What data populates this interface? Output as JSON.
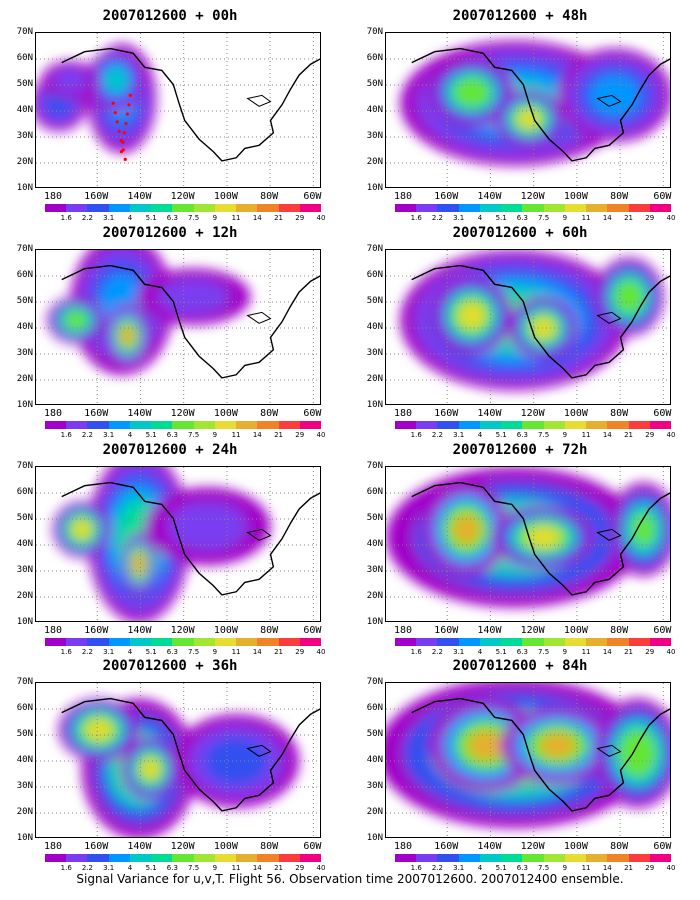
{
  "caption": "Signal Variance for u,v,T. Flight 56. Observation time 2007012600. 2007012400 ensemble.",
  "y_ticks": [
    "70N",
    "60N",
    "50N",
    "40N",
    "30N",
    "20N",
    "10N"
  ],
  "x_ticks": [
    "180",
    "160W",
    "140W",
    "120W",
    "100W",
    "80W",
    "60W"
  ],
  "colorbar": {
    "labels": [
      "1.6",
      "2.2",
      "3.1",
      "4",
      "5.1",
      "6.3",
      "7.5",
      "9",
      "11",
      "14",
      "21",
      "29",
      "40"
    ],
    "colors": [
      "#a000c8",
      "#7a3cf0",
      "#3250f0",
      "#0096ff",
      "#00c8c8",
      "#00dc96",
      "#64e632",
      "#a0e632",
      "#e6dc32",
      "#e6af2d",
      "#f08228",
      "#fa3c3c",
      "#f00082"
    ]
  },
  "panels": [
    {
      "title": "2007012600 + 00h",
      "lead_hours": 0,
      "flight_track_shown": true
    },
    {
      "title": "2007012600 + 12h",
      "lead_hours": 12,
      "flight_track_shown": false
    },
    {
      "title": "2007012600 + 24h",
      "lead_hours": 24,
      "flight_track_shown": false
    },
    {
      "title": "2007012600 + 36h",
      "lead_hours": 36,
      "flight_track_shown": false
    },
    {
      "title": "2007012600 + 48h",
      "lead_hours": 48,
      "flight_track_shown": false
    },
    {
      "title": "2007012600 + 60h",
      "lead_hours": 60,
      "flight_track_shown": false
    },
    {
      "title": "2007012600 + 72h",
      "lead_hours": 72,
      "flight_track_shown": false
    },
    {
      "title": "2007012600 + 84h",
      "lead_hours": 84,
      "flight_track_shown": false
    }
  ]
}
